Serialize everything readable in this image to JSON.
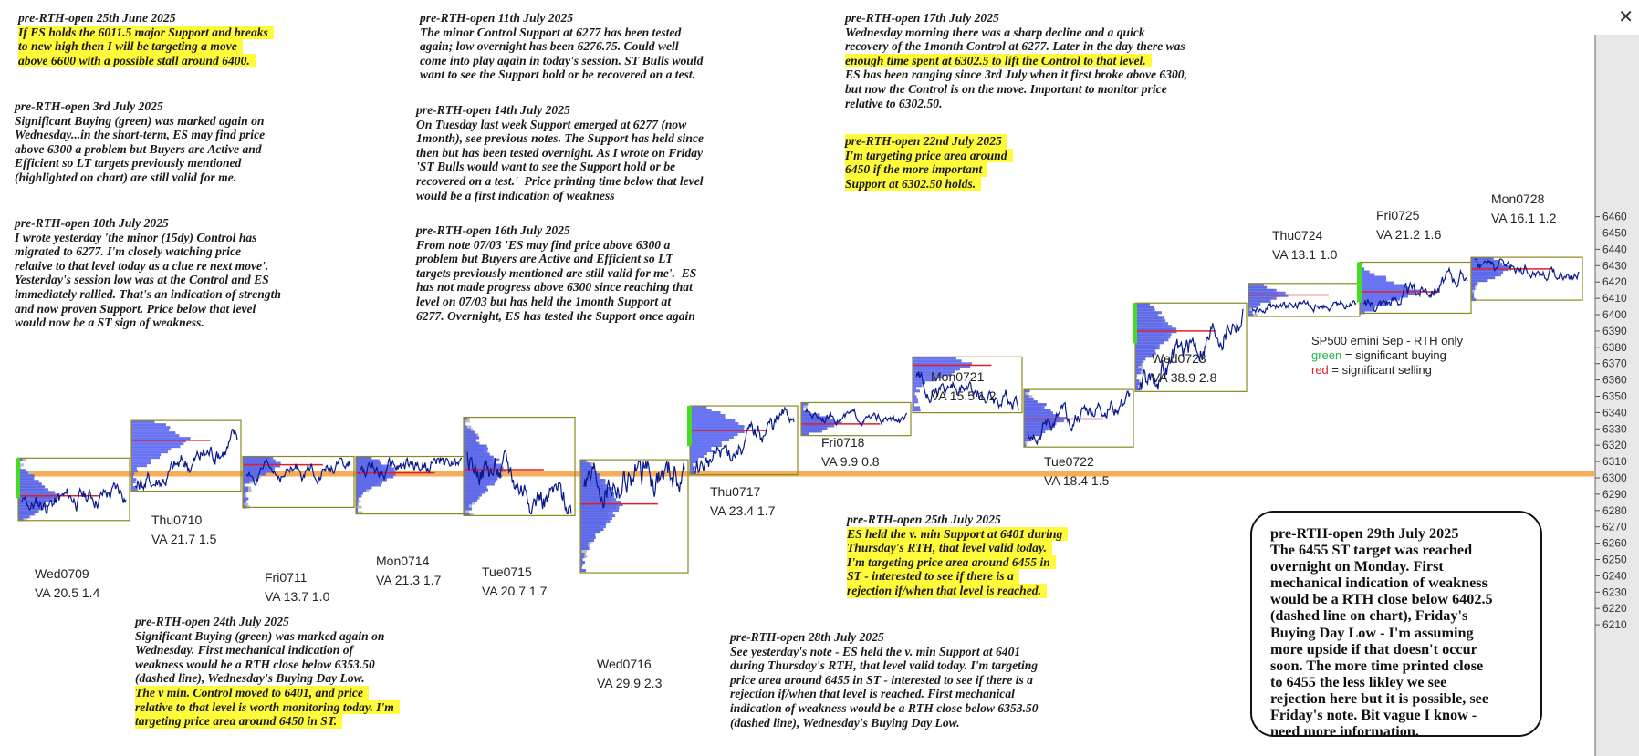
{
  "window": {
    "close_label": "✕"
  },
  "notes": [
    {
      "key": "n0625",
      "lines": [
        "pre-RTH-open 25th June 2025",
        "If ES holds the 6011.5 major Support and breaks",
        "to new high then I will be targeting a move",
        "above 6600 with a possible stall around 6400."
      ],
      "hl": [
        1,
        2,
        3
      ]
    },
    {
      "key": "n0703",
      "lines": [
        "pre-RTH-open 3rd July 2025",
        "Significant Buying (green) was marked again on",
        "Wednesday...in the short-term, ES may find price",
        "above 6300 a problem but Buyers are Active and",
        "Efficient so LT targets previously mentioned",
        "(highlighted on chart) are still valid for me."
      ],
      "hl": []
    },
    {
      "key": "n0710",
      "lines": [
        "pre-RTH-open 10th July 2025",
        "I wrote yesterday 'the minor (15dy) Control has",
        "migrated to 6277. I'm closely watching price",
        "relative to that level today as a clue re next move'.",
        "Yesterday's session low was at the Control and ES",
        "immediately rallied. That's an indication of strength",
        "and now proven Support. Price below that level",
        "would now be a ST sign of weakness."
      ],
      "hl": []
    },
    {
      "key": "n0711",
      "lines": [
        "pre-RTH-open 11th July 2025",
        "The minor Control Support at 6277 has been tested",
        "again; low overnight has been 6276.75. Could well",
        "come into play again in today's session. ST Bulls would",
        "want to see the Support hold or be recovered on a test."
      ],
      "hl": []
    },
    {
      "key": "n0714",
      "lines": [
        "pre-RTH-open 14th July 2025",
        "On Tuesday last week Support emerged at 6277 (now",
        "1month), see previous notes. The Support has held since",
        "then but has been tested overnight. As I wrote on Friday",
        "'ST Bulls would want to see the Support hold or be",
        "recovered on a test.'  Price printing time below that level",
        "would be a first indication of weakness"
      ],
      "hl": []
    },
    {
      "key": "n0716",
      "lines": [
        "pre-RTH-open 16th July 2025",
        "From note 07/03 'ES may find price above 6300 a",
        "problem but Buyers are Active and Efficient so LT",
        "targets previously mentioned are still valid for me'.  ES",
        "has not made progress above 6300 since reaching that",
        "level on 07/03 but has held the 1month Support at",
        "6277. Overnight, ES has tested the Support once again"
      ],
      "hl": []
    },
    {
      "key": "n0717",
      "lines": [
        "pre-RTH-open 17th July 2025",
        "Wednesday morning there was a sharp decline and a quick",
        "recovery of the 1month Control at 6277. Later in the day there was",
        "enough time spent at 6302.5 to lift the Control to that level.",
        "ES has been ranging since 3rd July when it first broke above 6300,",
        "but now the Control is on the move. Important to monitor price",
        "relative to 6302.50."
      ],
      "hl": [
        3
      ]
    },
    {
      "key": "n0722",
      "lines": [
        "pre-RTH-open 22nd July 2025",
        "I'm targeting price area around",
        "6450 if the more important",
        "Support at 6302.50 holds."
      ],
      "hl": [
        0,
        1,
        2,
        3
      ]
    },
    {
      "key": "n0724",
      "lines": [
        "pre-RTH-open 24th July 2025",
        "Significant Buying (green) was marked again on",
        "Wednesday. First mechanical indication of",
        "weakness would be a RTH close below 6353.50",
        "(dashed line), Wednesday's Buying Day Low.",
        "The v min. Control moved to 6401, and price",
        "relative to that level is worth monitoring today. I'm",
        "targeting price area around 6450 in ST."
      ],
      "hl": [
        5,
        6,
        7
      ]
    },
    {
      "key": "n0725",
      "lines": [
        "pre-RTH-open 25th July 2025",
        "ES held the v. min Support at 6401 during",
        "Thursday's RTH, that level valid today.",
        "I'm targeting price area around 6455 in",
        "ST - interested to see if there is a",
        "rejection if/when that level is reached."
      ],
      "hl": [
        1,
        2,
        3,
        4,
        5
      ]
    },
    {
      "key": "n0728",
      "lines": [
        "pre-RTH-open 28th July 2025",
        "See yesterday's note - ES held the v. min Support at 6401",
        "during Thursday's RTH, that level valid today. I'm targeting",
        "price area around 6455 in ST - interested to see if there is a",
        "rejection if/when that level is reached. First mechanical",
        "indication of weakness would be a RTH close below 6353.50",
        "(dashed line), Wednesday's Buying Day Low."
      ],
      "hl": []
    }
  ],
  "callout": {
    "lines": [
      "pre-RTH-open 29th July 2025",
      "The 6455 ST target was reached",
      "overnight on Monday. First",
      "mechanical indication of weakness",
      "would be a RTH close below 6402.5",
      "(dashed line on chart), Friday's",
      "Buying Day Low - I'm assuming",
      "more upside if that doesn't occur",
      "soon. The more time printed close",
      "to 6455 the less likley we see",
      "rejection here but it is possible, see",
      "Friday's note. Bit vague I know -",
      "need more information."
    ]
  },
  "legend": {
    "title": "SP500 emini  Sep - RTH only",
    "green_word": "green",
    "green_rest": " = significant buying",
    "red_word": "red",
    "red_rest": " = significant selling",
    "green_color": "#22b14c",
    "red_color": "#e0202a"
  },
  "chart_data": {
    "type": "line",
    "title": "",
    "xlabel": "",
    "ylabel": "",
    "ylim": [
      6205,
      6465
    ],
    "y_ticks": [
      6210,
      6220,
      6230,
      6240,
      6250,
      6260,
      6270,
      6280,
      6290,
      6300,
      6310,
      6320,
      6330,
      6340,
      6350,
      6360,
      6370,
      6380,
      6390,
      6400,
      6410,
      6420,
      6430,
      6440,
      6450,
      6460
    ],
    "support_level": 6302.5,
    "colors": {
      "price": "#0a1a8a",
      "profile": "#4f5cf0",
      "profile_old": "#b8bcc4",
      "control": "#e0202a",
      "buying": "#44dd22",
      "box": "#8c8a1e",
      "support": "#f5a445",
      "axis_bg": "#e8e8e8"
    },
    "sessions": [
      {
        "label": "Wed0709",
        "va_line": "VA 20.5  1.4",
        "open": 6283,
        "close": 6292,
        "high": 6311,
        "low": 6275,
        "control": 6289
      },
      {
        "label": "Thu0710",
        "va_line": "VA 21.7  1.5",
        "open": 6295,
        "close": 6325,
        "high": 6334,
        "low": 6293,
        "control": 6323
      },
      {
        "label": "Fri0711",
        "va_line": "VA 13.7  1.0",
        "open": 6300,
        "close": 6309,
        "high": 6312,
        "low": 6283,
        "control": 6308
      },
      {
        "label": "Mon0714",
        "va_line": "VA 21.3  1.7",
        "open": 6305,
        "close": 6310,
        "high": 6312,
        "low": 6279,
        "control": 6303
      },
      {
        "label": "Tue0715",
        "va_line": "VA 20.7  1.7",
        "open": 6310,
        "close": 6279,
        "high": 6336,
        "low": 6278,
        "control": 6305
      },
      {
        "label": "Wed0716",
        "va_line": "VA 29.9  2.3",
        "open": 6300,
        "close": 6305,
        "high": 6310,
        "low": 6243,
        "control": 6284
      },
      {
        "label": "Thu0717",
        "va_line": "VA 23.4  1.7",
        "open": 6307,
        "close": 6341,
        "high": 6343,
        "low": 6303,
        "control": 6329
      },
      {
        "label": "Fri0718",
        "va_line": "VA 9.9  0.8",
        "open": 6339,
        "close": 6334,
        "high": 6345,
        "low": 6327,
        "control": 6333
      },
      {
        "label": "Mon0721",
        "va_line": "VA 15.5  1.2",
        "open": 6360,
        "close": 6346,
        "high": 6373,
        "low": 6341,
        "control": 6369
      },
      {
        "label": "Tue0722",
        "va_line": "VA 18.4  1.5",
        "open": 6330,
        "close": 6350,
        "high": 6353,
        "low": 6320,
        "control": 6336
      },
      {
        "label": "Wed0723",
        "va_line": "VA 38.9  2.8",
        "open": 6358,
        "close": 6405,
        "high": 6406,
        "low": 6354,
        "control": 6390
      },
      {
        "label": "Thu0724",
        "va_line": "VA 13.1  1.0",
        "open": 6403,
        "close": 6409,
        "high": 6418,
        "low": 6400,
        "control": 6412
      },
      {
        "label": "Fri0725",
        "va_line": "VA 21.2  1.6",
        "open": 6404,
        "close": 6426,
        "high": 6431,
        "low": 6402,
        "control": 6414
      },
      {
        "label": "Mon0728",
        "va_line": "VA 16.1  1.2",
        "open": 6432,
        "close": 6423,
        "high": 6434,
        "low": 6410,
        "control": 6428
      }
    ],
    "buying_marks": [
      "Wed0709",
      "Thu0717",
      "Wed0723",
      "Fri0725"
    ]
  }
}
